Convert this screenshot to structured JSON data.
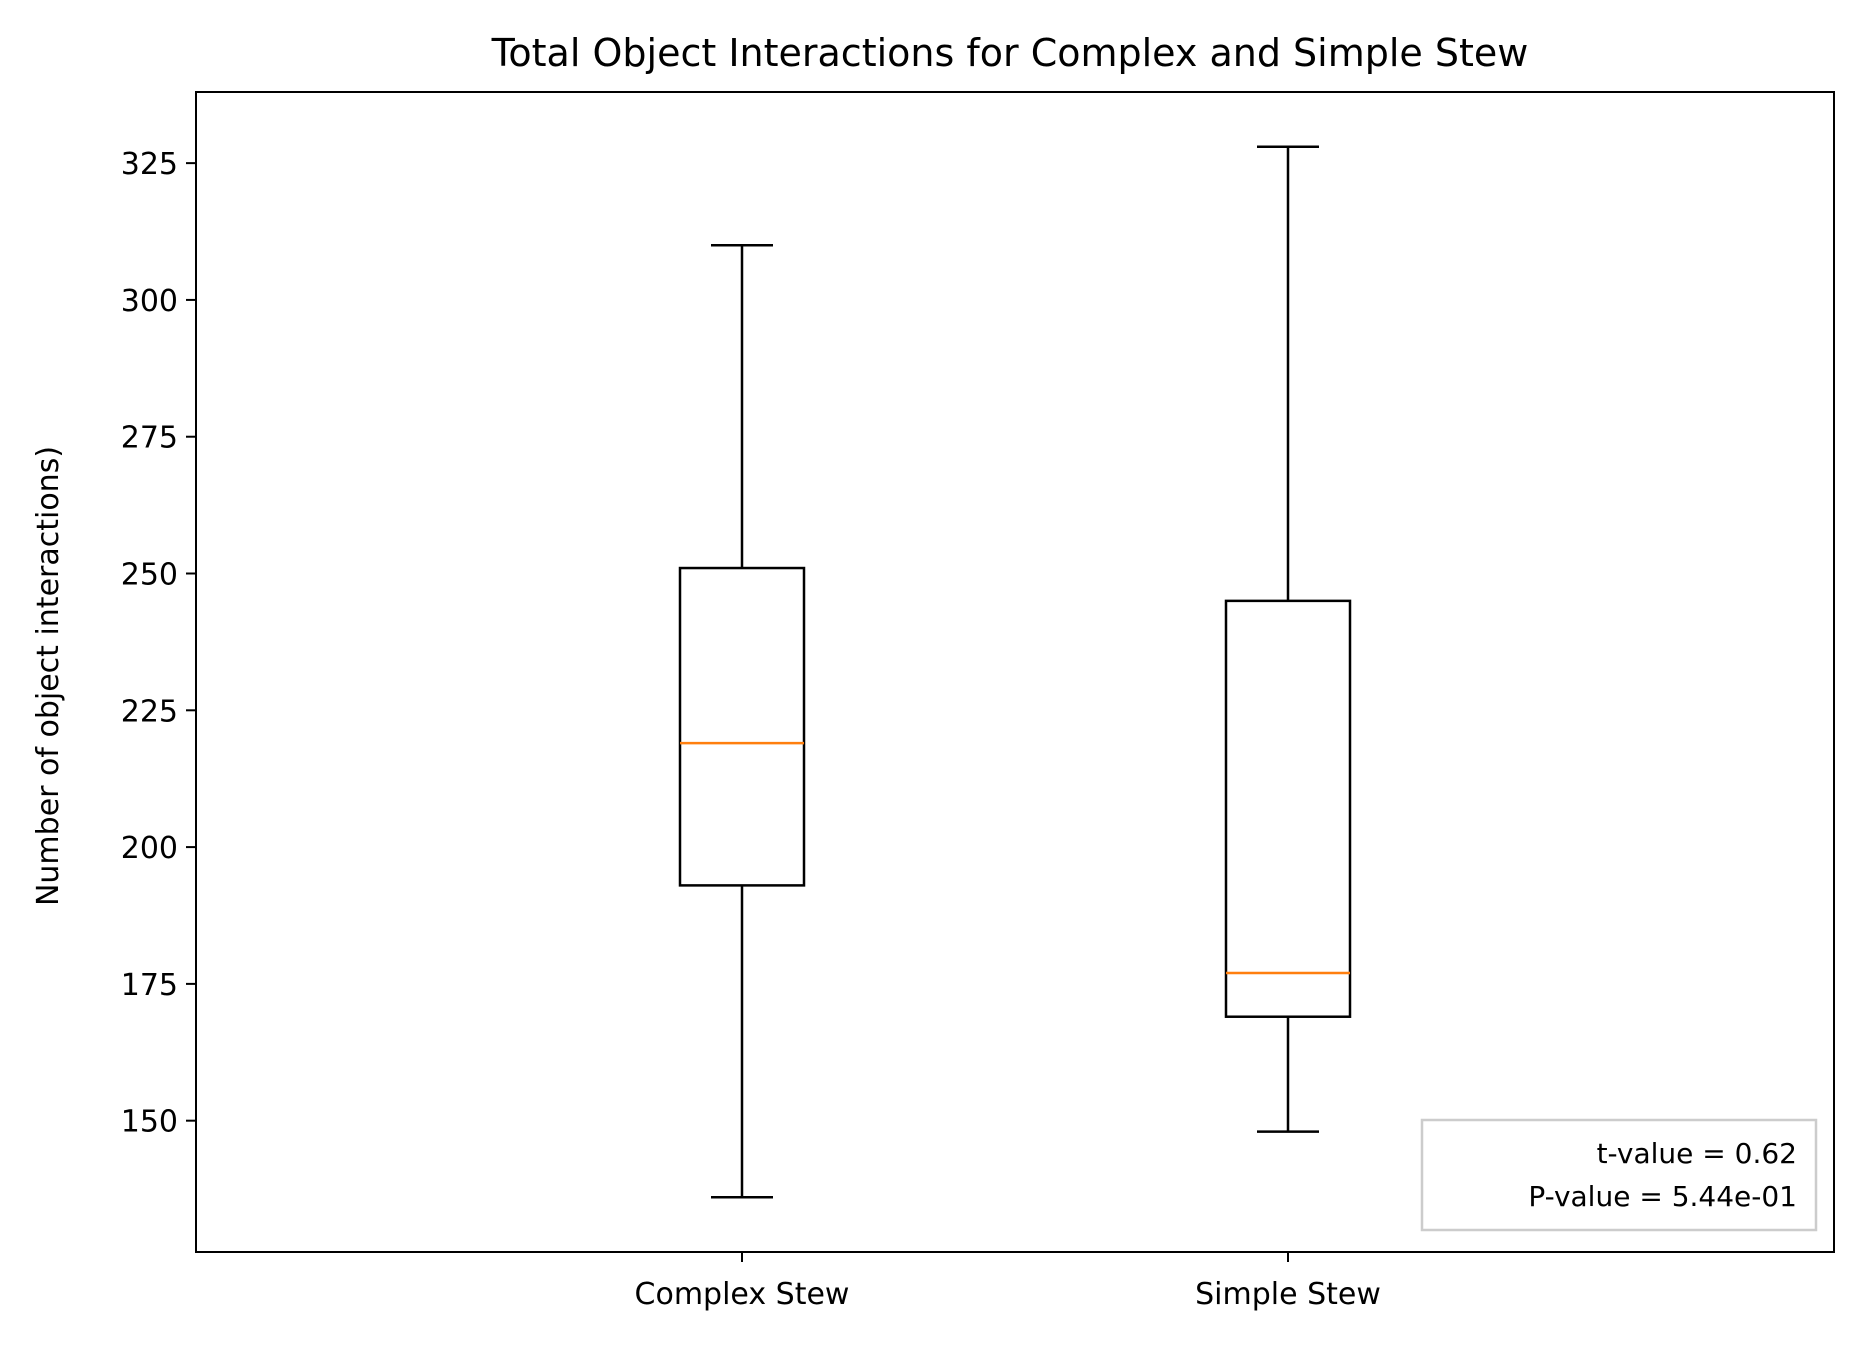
{
  "chart_data": {
    "type": "box",
    "title": "Total Object Interactions for Complex and Simple Stew",
    "xlabel": "",
    "ylabel": "Number of object interactions)",
    "ylim": [
      126,
      338
    ],
    "yticks": [
      150,
      175,
      200,
      225,
      250,
      275,
      300,
      325
    ],
    "categories": [
      "Complex Stew",
      "Simple Stew"
    ],
    "boxes": [
      {
        "category": "Complex Stew",
        "whisker_low": 136,
        "q1": 193,
        "median": 219,
        "q3": 251,
        "whisker_high": 310
      },
      {
        "category": "Simple Stew",
        "whisker_low": 148,
        "q1": 169,
        "median": 177,
        "q3": 245,
        "whisker_high": 328
      }
    ],
    "grid": false,
    "annotation": {
      "lines": [
        "t-value = 0.62",
        "P-value = 5.44e-01"
      ],
      "placement": "bottom-right"
    },
    "colors": {
      "box": "#000000",
      "median": "#ff7f0e",
      "annotation_border": "#cccccc"
    }
  }
}
